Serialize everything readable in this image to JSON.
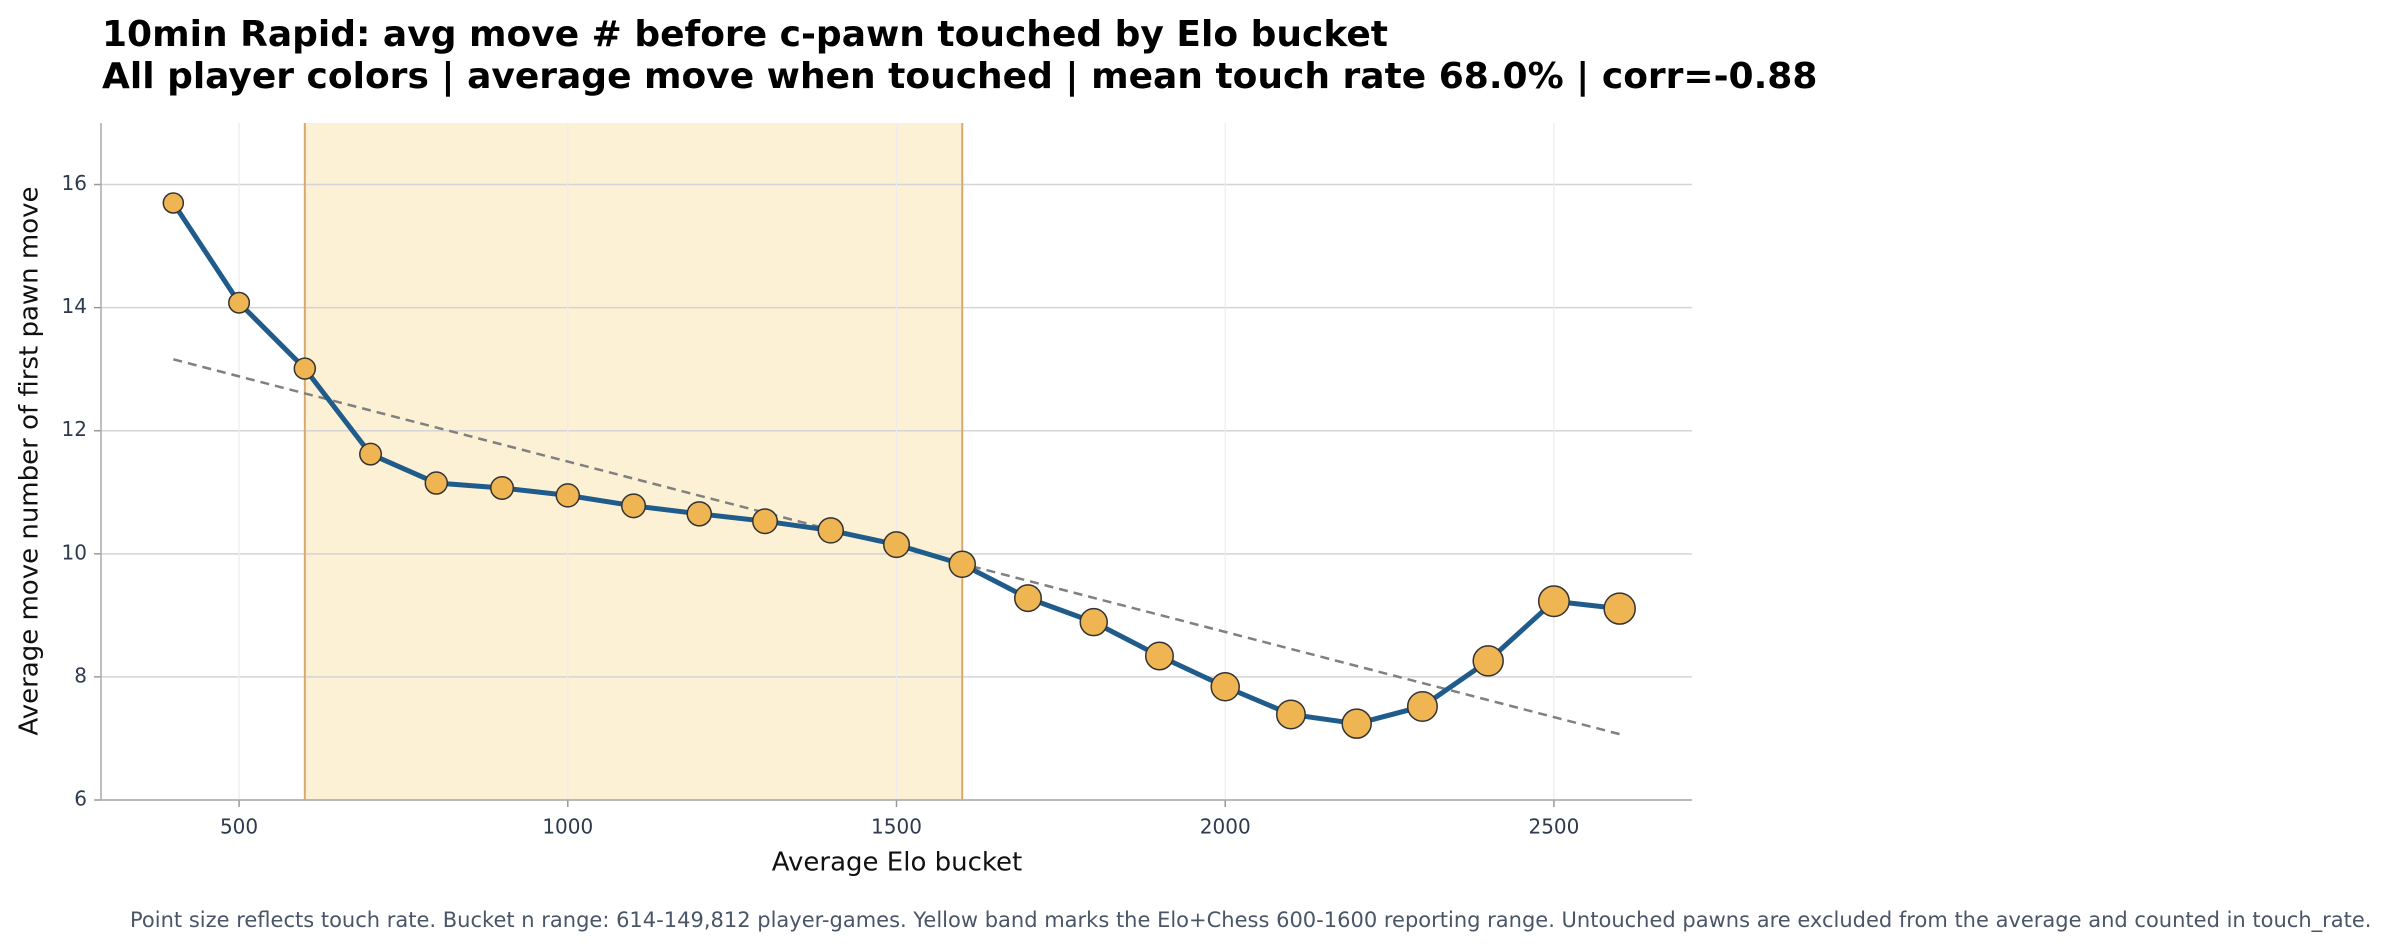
{
  "chart_data": {
    "type": "line",
    "title": "10min Rapid: avg move # before c-pawn touched by Elo bucket",
    "subtitle": "All player colors | average move when touched | mean touch rate 68.0% | corr=-0.88",
    "xlabel": "Average Elo bucket",
    "ylabel": "Average move number of first pawn move",
    "footnote": "Point size reflects touch rate. Bucket n range: 614-149,812 player-games. Yellow band marks the Elo+Chess 600-1600 reporting range. Untouched pawns are excluded from the average and counted in touch_rate.",
    "x": [
      400,
      500,
      600,
      700,
      800,
      900,
      1000,
      1100,
      1200,
      1300,
      1400,
      1500,
      1600,
      1700,
      1800,
      1900,
      2000,
      2100,
      2200,
      2300,
      2400,
      2500,
      2600
    ],
    "series": [
      {
        "name": "average move when touched",
        "color": "#1f5c8b",
        "marker_color": "#f0b553",
        "values": [
          15.7,
          14.08,
          13.01,
          11.62,
          11.15,
          11.07,
          10.95,
          10.78,
          10.65,
          10.53,
          10.38,
          10.15,
          9.83,
          9.28,
          8.89,
          8.34,
          7.84,
          7.39,
          7.24,
          7.52,
          8.26,
          9.23,
          9.11
        ]
      }
    ],
    "trend": {
      "x": [
        400,
        2600
      ],
      "values": [
        13.16,
        7.07
      ],
      "color": "#808080"
    },
    "band": {
      "range": [
        600,
        1600
      ],
      "color": "#fcf1d4",
      "edge_color": "#d9a86c"
    },
    "xlim": [
      290,
      2710
    ],
    "ylim": [
      6,
      17
    ],
    "xticks": [
      500,
      1000,
      1500,
      2000,
      2500
    ],
    "yticks": [
      6,
      8,
      10,
      12,
      14,
      16
    ],
    "grid": true
  }
}
